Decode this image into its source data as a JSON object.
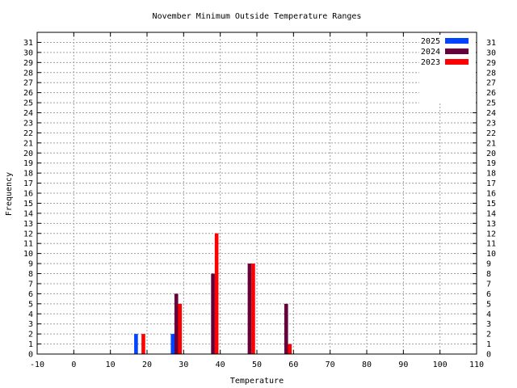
{
  "chart_data": {
    "type": "bar",
    "title": "November Minimum Outside Temperature Ranges",
    "xlabel": "Temperature",
    "ylabel": "Frequency",
    "xlim": [
      -10,
      110
    ],
    "ylim": [
      0,
      32
    ],
    "x_ticks": [
      -10,
      0,
      10,
      20,
      30,
      40,
      50,
      60,
      70,
      80,
      90,
      100,
      110
    ],
    "y_ticks": [
      0,
      1,
      2,
      3,
      4,
      5,
      6,
      7,
      8,
      9,
      10,
      11,
      12,
      13,
      14,
      15,
      16,
      17,
      18,
      19,
      20,
      21,
      22,
      23,
      24,
      25,
      26,
      27,
      28,
      29,
      30,
      31
    ],
    "y_ticks_right": true,
    "grid": true,
    "legend_position": "top-right",
    "series": [
      {
        "name": "2025",
        "color": "#0044ff",
        "points": [
          {
            "x": 17,
            "y": 2
          },
          {
            "x": 27,
            "y": 2
          }
        ]
      },
      {
        "name": "2024",
        "color": "#66003a",
        "points": [
          {
            "x": 28,
            "y": 6
          },
          {
            "x": 38,
            "y": 8
          },
          {
            "x": 48,
            "y": 9
          },
          {
            "x": 58,
            "y": 5
          }
        ]
      },
      {
        "name": "2023",
        "color": "#ff0000",
        "points": [
          {
            "x": 19,
            "y": 2
          },
          {
            "x": 29,
            "y": 5
          },
          {
            "x": 39,
            "y": 12
          },
          {
            "x": 49,
            "y": 9
          },
          {
            "x": 59,
            "y": 1
          }
        ]
      }
    ]
  }
}
